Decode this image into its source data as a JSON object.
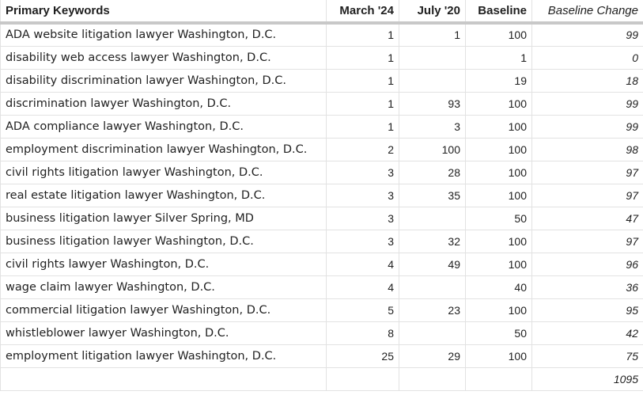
{
  "columns": {
    "keyword": "Primary Keywords",
    "march24": "March '24",
    "july20": "July '20",
    "baseline": "Baseline",
    "change": "Baseline Change"
  },
  "rows": [
    {
      "keyword": "ADA website litigation lawyer Washington, D.C.",
      "march24": "1",
      "july20": "1",
      "baseline": "100",
      "change": "99"
    },
    {
      "keyword": "disability web access lawyer Washington, D.C.",
      "march24": "1",
      "july20": "",
      "baseline": "1",
      "change": "0"
    },
    {
      "keyword": "disability discrimination lawyer Washington, D.C.",
      "march24": "1",
      "july20": "",
      "baseline": "19",
      "change": "18"
    },
    {
      "keyword": "discrimination lawyer Washington, D.C.",
      "march24": "1",
      "july20": "93",
      "baseline": "100",
      "change": "99"
    },
    {
      "keyword": "ADA compliance lawyer Washington, D.C.",
      "march24": "1",
      "july20": "3",
      "baseline": "100",
      "change": "99"
    },
    {
      "keyword": "employment discrimination lawyer Washington, D.C.",
      "march24": "2",
      "july20": "100",
      "baseline": "100",
      "change": "98"
    },
    {
      "keyword": "civil rights litigation lawyer Washington, D.C.",
      "march24": "3",
      "july20": "28",
      "baseline": "100",
      "change": "97"
    },
    {
      "keyword": "real estate litigation lawyer Washington, D.C.",
      "march24": "3",
      "july20": "35",
      "baseline": "100",
      "change": "97"
    },
    {
      "keyword": "business litigation lawyer Silver Spring, MD",
      "march24": "3",
      "july20": "",
      "baseline": "50",
      "change": "47"
    },
    {
      "keyword": "business litigation lawyer Washington, D.C.",
      "march24": "3",
      "july20": "32",
      "baseline": "100",
      "change": "97"
    },
    {
      "keyword": "civil rights lawyer Washington, D.C.",
      "march24": "4",
      "july20": "49",
      "baseline": "100",
      "change": "96"
    },
    {
      "keyword": "wage claim lawyer Washington, D.C.",
      "march24": "4",
      "july20": "",
      "baseline": "40",
      "change": "36"
    },
    {
      "keyword": "commercial litigation lawyer Washington, D.C.",
      "march24": "5",
      "july20": "23",
      "baseline": "100",
      "change": "95"
    },
    {
      "keyword": "whistleblower lawyer Washington, D.C.",
      "march24": "8",
      "july20": "",
      "baseline": "50",
      "change": "42"
    },
    {
      "keyword": "employment litigation lawyer Washington, D.C.",
      "march24": "25",
      "july20": "29",
      "baseline": "100",
      "change": "75"
    }
  ],
  "total": {
    "change": "1095"
  }
}
